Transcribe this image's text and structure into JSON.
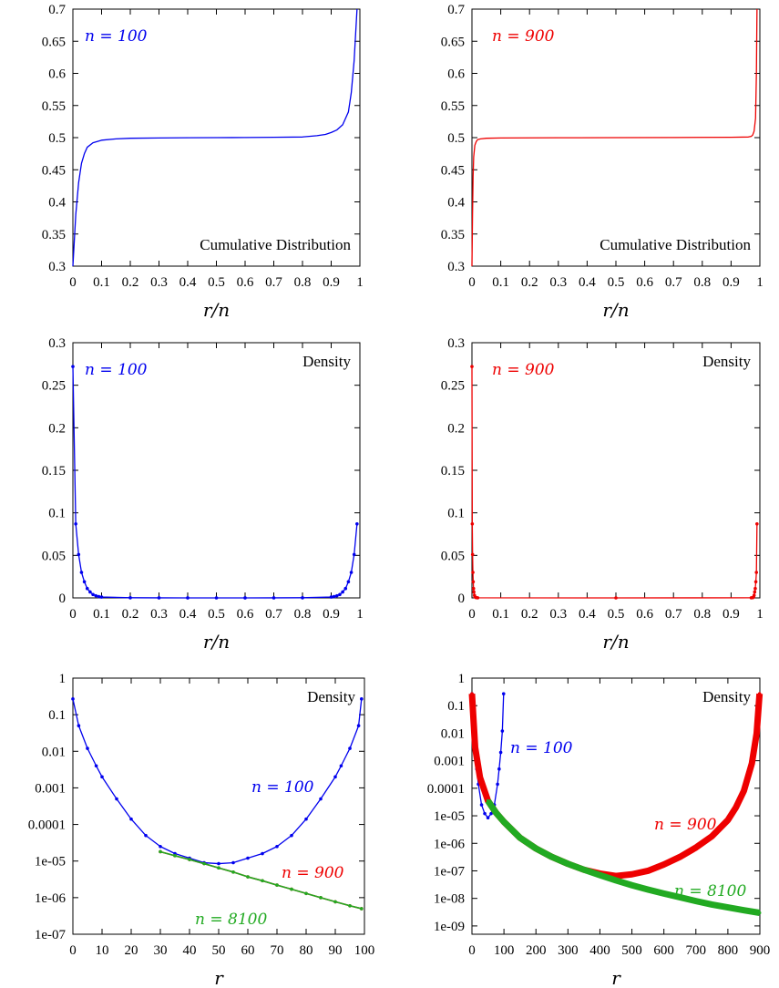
{
  "chart_data": [
    {
      "type": "line",
      "xlabel": "r/n",
      "annotation": "Cumulative Distribution",
      "label": "n = 100",
      "color": "#0000ee",
      "xlim": [
        0,
        1
      ],
      "ylim": [
        0.3,
        0.7
      ],
      "xticks": [
        "0",
        "0.1",
        "0.2",
        "0.3",
        "0.4",
        "0.5",
        "0.6",
        "0.7",
        "0.8",
        "0.9",
        "1"
      ],
      "yticks": [
        "0.3",
        "0.35",
        "0.4",
        "0.45",
        "0.5",
        "0.55",
        "0.6",
        "0.65",
        "0.7"
      ],
      "series": [
        {
          "x": [
            0,
            0.005,
            0.01,
            0.02,
            0.03,
            0.04,
            0.05,
            0.07,
            0.1,
            0.15,
            0.2,
            0.3,
            0.4,
            0.5,
            0.6,
            0.7,
            0.8,
            0.85,
            0.88,
            0.9,
            0.92,
            0.94,
            0.95,
            0.96,
            0.97,
            0.98,
            0.99
          ],
          "y": [
            0.3,
            0.34,
            0.38,
            0.43,
            0.46,
            0.475,
            0.485,
            0.492,
            0.496,
            0.498,
            0.499,
            0.4995,
            0.4998,
            0.5,
            0.5002,
            0.5005,
            0.501,
            0.503,
            0.505,
            0.508,
            0.512,
            0.52,
            0.53,
            0.54,
            0.57,
            0.62,
            0.7
          ]
        }
      ]
    },
    {
      "type": "line",
      "xlabel": "r/n",
      "annotation": "Cumulative Distribution",
      "label": "n = 900",
      "color": "#ee0000",
      "xlim": [
        0,
        1
      ],
      "ylim": [
        0.3,
        0.7
      ],
      "xticks": [
        "0",
        "0.1",
        "0.2",
        "0.3",
        "0.4",
        "0.5",
        "0.6",
        "0.7",
        "0.8",
        "0.9",
        "1"
      ],
      "yticks": [
        "0.3",
        "0.35",
        "0.4",
        "0.45",
        "0.5",
        "0.55",
        "0.6",
        "0.65",
        "0.7"
      ],
      "series": [
        {
          "x": [
            0,
            0.002,
            0.004,
            0.006,
            0.01,
            0.015,
            0.02,
            0.03,
            0.05,
            0.1,
            0.3,
            0.5,
            0.7,
            0.9,
            0.96,
            0.97,
            0.975,
            0.98,
            0.985,
            0.988,
            0.99
          ],
          "y": [
            0.3,
            0.38,
            0.44,
            0.47,
            0.488,
            0.494,
            0.497,
            0.498,
            0.499,
            0.4995,
            0.4998,
            0.5,
            0.5002,
            0.5005,
            0.501,
            0.502,
            0.504,
            0.51,
            0.53,
            0.6,
            0.7
          ]
        }
      ]
    },
    {
      "type": "line",
      "xlabel": "r/n",
      "annotation": "Density",
      "label": "n = 100",
      "color": "#0000ee",
      "markers": true,
      "xlim": [
        0,
        1
      ],
      "ylim": [
        0,
        0.3
      ],
      "xticks": [
        "0",
        "0.1",
        "0.2",
        "0.3",
        "0.4",
        "0.5",
        "0.6",
        "0.7",
        "0.8",
        "0.9",
        "1"
      ],
      "yticks": [
        "0",
        "0.05",
        "0.1",
        "0.15",
        "0.2",
        "0.25",
        "0.3"
      ],
      "series": [
        {
          "x": [
            0,
            0.01,
            0.02,
            0.03,
            0.04,
            0.05,
            0.06,
            0.07,
            0.08,
            0.09,
            0.1,
            0.2,
            0.3,
            0.4,
            0.5,
            0.6,
            0.7,
            0.8,
            0.9,
            0.91,
            0.92,
            0.93,
            0.94,
            0.95,
            0.96,
            0.97,
            0.98,
            0.99
          ],
          "y": [
            0.272,
            0.087,
            0.051,
            0.03,
            0.019,
            0.011,
            0.007,
            0.004,
            0.0025,
            0.0015,
            0.001,
            0.0002,
            5e-05,
            2e-05,
            1e-05,
            2e-05,
            5e-05,
            0.0002,
            0.001,
            0.0015,
            0.0025,
            0.004,
            0.007,
            0.011,
            0.019,
            0.03,
            0.051,
            0.087
          ]
        }
      ]
    },
    {
      "type": "line",
      "xlabel": "r/n",
      "annotation": "Density",
      "label": "n = 900",
      "color": "#ee0000",
      "markers": true,
      "xlim": [
        0,
        1
      ],
      "ylim": [
        0,
        0.3
      ],
      "xticks": [
        "0",
        "0.1",
        "0.2",
        "0.3",
        "0.4",
        "0.5",
        "0.6",
        "0.7",
        "0.8",
        "0.9",
        "1"
      ],
      "yticks": [
        "0",
        "0.05",
        "0.1",
        "0.15",
        "0.2",
        "0.25",
        "0.3"
      ],
      "series": [
        {
          "x": [
            0,
            0.0011,
            0.0022,
            0.0033,
            0.0044,
            0.0055,
            0.0066,
            0.0088,
            0.011,
            0.015,
            0.02,
            0.5,
            0.97,
            0.975,
            0.978,
            0.98,
            0.982,
            0.984,
            0.986,
            0.988,
            0.99
          ],
          "y": [
            0.272,
            0.087,
            0.051,
            0.03,
            0.019,
            0.011,
            0.007,
            0.003,
            0.001,
            0.0003,
            0.0001,
            0.0,
            0.0001,
            0.0003,
            0.001,
            0.003,
            0.007,
            0.011,
            0.019,
            0.03,
            0.087
          ]
        }
      ]
    },
    {
      "type": "line",
      "xlabel": "r",
      "annotation": "Density",
      "ylog": true,
      "xlim": [
        0,
        100
      ],
      "ylim": [
        1e-07,
        1
      ],
      "xticks": [
        "0",
        "10",
        "20",
        "30",
        "40",
        "50",
        "60",
        "70",
        "80",
        "90",
        "100"
      ],
      "yticks": [
        "1e-07",
        "1e-06",
        "1e-05",
        "0.0001",
        "0.001",
        "0.01",
        "0.1",
        "1"
      ],
      "series": [
        {
          "name": "n = 100",
          "color": "#0000ee",
          "x": [
            0,
            2,
            5,
            8,
            10,
            15,
            20,
            25,
            30,
            35,
            40,
            45,
            50,
            55,
            60,
            65,
            70,
            75,
            80,
            85,
            90,
            92,
            95,
            98,
            99
          ],
          "y": [
            0.27,
            0.05,
            0.012,
            0.004,
            0.002,
            0.0005,
            0.00014,
            5e-05,
            2.5e-05,
            1.6e-05,
            1.2e-05,
            9e-06,
            8.5e-06,
            9e-06,
            1.2e-05,
            1.6e-05,
            2.5e-05,
            5e-05,
            0.00014,
            0.0005,
            0.002,
            0.004,
            0.012,
            0.05,
            0.27
          ]
        },
        {
          "name": "n = 900",
          "color": "#ee0000",
          "x": [
            30,
            35,
            40,
            45,
            50,
            55,
            60,
            65,
            70,
            75,
            80,
            85,
            90,
            95,
            99
          ],
          "y": [
            1.8e-05,
            1.4e-05,
            1.1e-05,
            8.5e-06,
            6.5e-06,
            5e-06,
            3.7e-06,
            2.9e-06,
            2.2e-06,
            1.7e-06,
            1.3e-06,
            1e-06,
            7.7e-07,
            6e-07,
            5e-07
          ]
        },
        {
          "name": "n = 8100",
          "color": "#22aa22",
          "x": [
            30,
            35,
            40,
            45,
            50,
            55,
            60,
            65,
            70,
            75,
            80,
            85,
            90,
            95,
            99
          ],
          "y": [
            1.8e-05,
            1.4e-05,
            1.1e-05,
            8.5e-06,
            6.5e-06,
            5e-06,
            3.7e-06,
            2.9e-06,
            2.2e-06,
            1.7e-06,
            1.3e-06,
            1e-06,
            7.7e-07,
            6e-07,
            5e-07
          ]
        }
      ]
    },
    {
      "type": "line",
      "xlabel": "r",
      "annotation": "Density",
      "ylog": true,
      "xlim": [
        0,
        900
      ],
      "ylim": [
        5e-10,
        1
      ],
      "xticks": [
        "0",
        "100",
        "200",
        "300",
        "400",
        "500",
        "600",
        "700",
        "800",
        "900"
      ],
      "yticks": [
        "1e-09",
        "1e-08",
        "1e-07",
        "1e-06",
        "1e-05",
        "0.0001",
        "0.001",
        "0.01",
        "0.1",
        "1"
      ],
      "series": [
        {
          "name": "n = 100",
          "color": "#0000ee",
          "x": [
            0,
            5,
            10,
            15,
            20,
            30,
            40,
            50,
            60,
            70,
            80,
            85,
            90,
            95,
            99
          ],
          "y": [
            0.27,
            0.012,
            0.002,
            0.0005,
            0.00014,
            2.5e-05,
            1.2e-05,
            8.5e-06,
            1.2e-05,
            2.5e-05,
            0.00014,
            0.0005,
            0.002,
            0.012,
            0.27
          ]
        },
        {
          "name": "n = 900",
          "color": "#ee0000",
          "x": [
            0,
            10,
            25,
            50,
            75,
            100,
            150,
            200,
            250,
            300,
            350,
            400,
            450,
            500,
            550,
            600,
            650,
            700,
            750,
            800,
            825,
            850,
            875,
            890,
            899
          ],
          "y": [
            0.27,
            0.003,
            0.00025,
            3.5e-05,
            1.3e-05,
            6e-06,
            1.6e-06,
            6.5e-07,
            3.2e-07,
            1.8e-07,
            1.1e-07,
            8e-08,
            6.5e-08,
            7.5e-08,
            1e-07,
            1.7e-07,
            3.2e-07,
            7e-07,
            1.8e-06,
            7e-06,
            2e-05,
            8e-05,
            0.0008,
            0.01,
            0.27
          ]
        },
        {
          "name": "n = 8100",
          "color": "#22aa22",
          "x": [
            50,
            75,
            100,
            150,
            200,
            250,
            300,
            350,
            400,
            450,
            500,
            550,
            600,
            650,
            700,
            750,
            800,
            850,
            899
          ],
          "y": [
            3.5e-05,
            1.3e-05,
            6e-06,
            1.6e-06,
            6.5e-07,
            3.2e-07,
            1.8e-07,
            1.1e-07,
            7e-08,
            4.5e-08,
            3e-08,
            2.1e-08,
            1.5e-08,
            1.1e-08,
            8e-09,
            6e-09,
            4.7e-09,
            3.7e-09,
            3e-09
          ]
        }
      ]
    }
  ]
}
